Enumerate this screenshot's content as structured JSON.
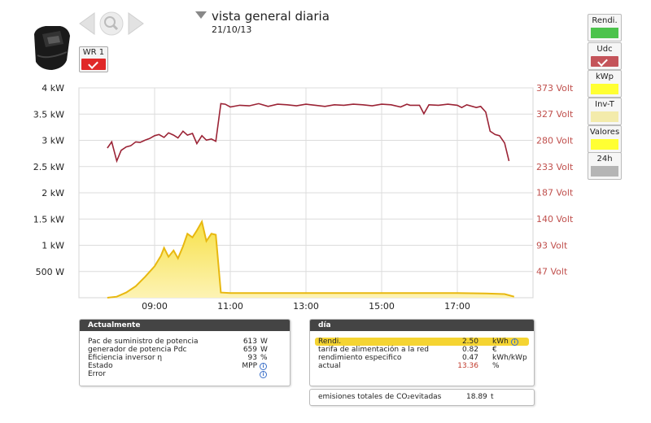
{
  "header": {
    "title": "vista general diaria",
    "date": "21/10/13",
    "title_menu_icon": "triangle-down-icon",
    "logo_icon": "inverter-device-icon",
    "nav": {
      "prev_icon": "arrow-left-icon",
      "zoom_icon": "magnifier-icon",
      "next_icon": "arrow-right-icon"
    }
  },
  "inverter_toggle": {
    "label": "WR 1",
    "checked": true,
    "color": "#e02828"
  },
  "side_buttons": [
    {
      "label": "Rendi.",
      "color": "#4cc34c",
      "checked": false
    },
    {
      "label": "Udc",
      "color": "#c4545a",
      "checked": true
    },
    {
      "label": "kWp",
      "color": "#ffff33",
      "checked": false
    },
    {
      "label": "Inv-T",
      "color": "#f3ebab",
      "checked": false
    },
    {
      "label": "Valores",
      "color": "#ffff33",
      "checked": false
    },
    {
      "label": "24h",
      "color": "#b5b5b5",
      "checked": false
    }
  ],
  "chart_data": {
    "type": "line",
    "grid": true,
    "x_ticks": [
      "09:00",
      "11:00",
      "13:00",
      "15:00",
      "17:00"
    ],
    "x_range": [
      "07:00",
      "19:00"
    ],
    "y_left": {
      "unit": "kW",
      "range": [
        0,
        4
      ],
      "ticks": [
        "4 kW",
        "3.5 kW",
        "3 kW",
        "2.5 kW",
        "2 kW",
        "1.5 kW",
        "1 kW",
        "500 W"
      ],
      "tick_values": [
        4,
        3.5,
        3,
        2.5,
        2,
        1.5,
        1,
        0.5
      ]
    },
    "y_right": {
      "unit": "Volt",
      "range": [
        0,
        373
      ],
      "ticks": [
        "373 Volt",
        "327 Volt",
        "280 Volt",
        "233 Volt",
        "187 Volt",
        "140 Volt",
        "93 Volt",
        "47 Volt"
      ],
      "tick_values": [
        373,
        327,
        280,
        233,
        187,
        140,
        93,
        47
      ],
      "color": "#c0504d"
    },
    "series": [
      {
        "axis": "left",
        "style": "area",
        "color": "#f5d432",
        "points": [
          [
            "07:45",
            0.0
          ],
          [
            "08:00",
            0.02
          ],
          [
            "08:15",
            0.1
          ],
          [
            "08:30",
            0.22
          ],
          [
            "08:45",
            0.4
          ],
          [
            "09:00",
            0.6
          ],
          [
            "09:10",
            0.8
          ],
          [
            "09:15",
            0.95
          ],
          [
            "09:22",
            0.78
          ],
          [
            "09:30",
            0.9
          ],
          [
            "09:37",
            0.75
          ],
          [
            "09:45",
            0.98
          ],
          [
            "09:52",
            1.22
          ],
          [
            "10:00",
            1.15
          ],
          [
            "10:07",
            1.28
          ],
          [
            "10:15",
            1.45
          ],
          [
            "10:22",
            1.08
          ],
          [
            "10:30",
            1.22
          ],
          [
            "10:37",
            1.2
          ],
          [
            "10:45",
            0.1
          ],
          [
            "11:00",
            0.09
          ],
          [
            "13:00",
            0.09
          ],
          [
            "15:00",
            0.09
          ],
          [
            "17:00",
            0.09
          ],
          [
            "17:45",
            0.08
          ],
          [
            "18:15",
            0.07
          ],
          [
            "18:30",
            0.02
          ]
        ]
      },
      {
        "axis": "right",
        "style": "line",
        "color": "#9b2335",
        "points": [
          [
            "07:45",
            266
          ],
          [
            "07:52",
            277
          ],
          [
            "08:00",
            243
          ],
          [
            "08:07",
            262
          ],
          [
            "08:15",
            268
          ],
          [
            "08:22",
            270
          ],
          [
            "08:30",
            277
          ],
          [
            "08:37",
            276
          ],
          [
            "08:45",
            280
          ],
          [
            "08:52",
            283
          ],
          [
            "09:00",
            288
          ],
          [
            "09:07",
            290
          ],
          [
            "09:15",
            285
          ],
          [
            "09:22",
            293
          ],
          [
            "09:30",
            289
          ],
          [
            "09:37",
            284
          ],
          [
            "09:45",
            296
          ],
          [
            "09:52",
            289
          ],
          [
            "10:00",
            292
          ],
          [
            "10:07",
            274
          ],
          [
            "10:15",
            288
          ],
          [
            "10:22",
            280
          ],
          [
            "10:30",
            282
          ],
          [
            "10:37",
            278
          ],
          [
            "10:45",
            345
          ],
          [
            "10:52",
            344
          ],
          [
            "11:00",
            339
          ],
          [
            "11:15",
            342
          ],
          [
            "11:30",
            341
          ],
          [
            "11:45",
            345
          ],
          [
            "12:00",
            340
          ],
          [
            "12:15",
            344
          ],
          [
            "12:30",
            343
          ],
          [
            "12:45",
            341
          ],
          [
            "13:00",
            344
          ],
          [
            "13:15",
            342
          ],
          [
            "13:30",
            340
          ],
          [
            "13:45",
            343
          ],
          [
            "14:00",
            342
          ],
          [
            "14:15",
            344
          ],
          [
            "14:30",
            343
          ],
          [
            "14:45",
            341
          ],
          [
            "15:00",
            344
          ],
          [
            "15:15",
            343
          ],
          [
            "15:30",
            339
          ],
          [
            "15:40",
            344
          ],
          [
            "15:45",
            342
          ],
          [
            "16:00",
            342
          ],
          [
            "16:07",
            327
          ],
          [
            "16:15",
            343
          ],
          [
            "16:30",
            342
          ],
          [
            "16:45",
            344
          ],
          [
            "17:00",
            342
          ],
          [
            "17:07",
            338
          ],
          [
            "17:15",
            343
          ],
          [
            "17:30",
            338
          ],
          [
            "17:37",
            340
          ],
          [
            "17:45",
            330
          ],
          [
            "17:52",
            296
          ],
          [
            "18:00",
            290
          ],
          [
            "18:07",
            288
          ],
          [
            "18:15",
            275
          ],
          [
            "18:22",
            243
          ]
        ]
      }
    ]
  },
  "panels": {
    "current": {
      "title": "Actualmente",
      "rows": [
        {
          "label": "Pac de suministro de potencia",
          "value": "613",
          "unit": "W",
          "info": false
        },
        {
          "label": "generador de potencia Pdc",
          "value": "659",
          "unit": "W",
          "info": false
        },
        {
          "label": "Eficiencia inversor η",
          "value": "93",
          "unit": "%",
          "info": false
        },
        {
          "label": "Estado",
          "value": "MPP",
          "unit": "",
          "info": true
        },
        {
          "label": "Error",
          "value": "",
          "unit": "",
          "info": true
        }
      ]
    },
    "day": {
      "title": "día",
      "highlight_color": "#f5d432",
      "rows": [
        {
          "label": "Rendi.",
          "value": "2.50",
          "unit": "kWh",
          "info": true,
          "highlight": true,
          "value_color": ""
        },
        {
          "label": "tarifa de alimentación a la red",
          "value": "0.82",
          "unit": "€",
          "info": false,
          "highlight": false,
          "value_color": ""
        },
        {
          "label": "rendimiento especifico",
          "value": "0.47",
          "unit": "kWh/kWp",
          "info": false,
          "highlight": false,
          "value_color": ""
        },
        {
          "label": "actual",
          "value": "13.36",
          "unit": "%",
          "info": false,
          "highlight": false,
          "value_color": "#c0392b"
        }
      ]
    },
    "emissions": {
      "label": "emisiones totales de CO₂evitadas",
      "value": "18.89",
      "unit": "t"
    }
  }
}
